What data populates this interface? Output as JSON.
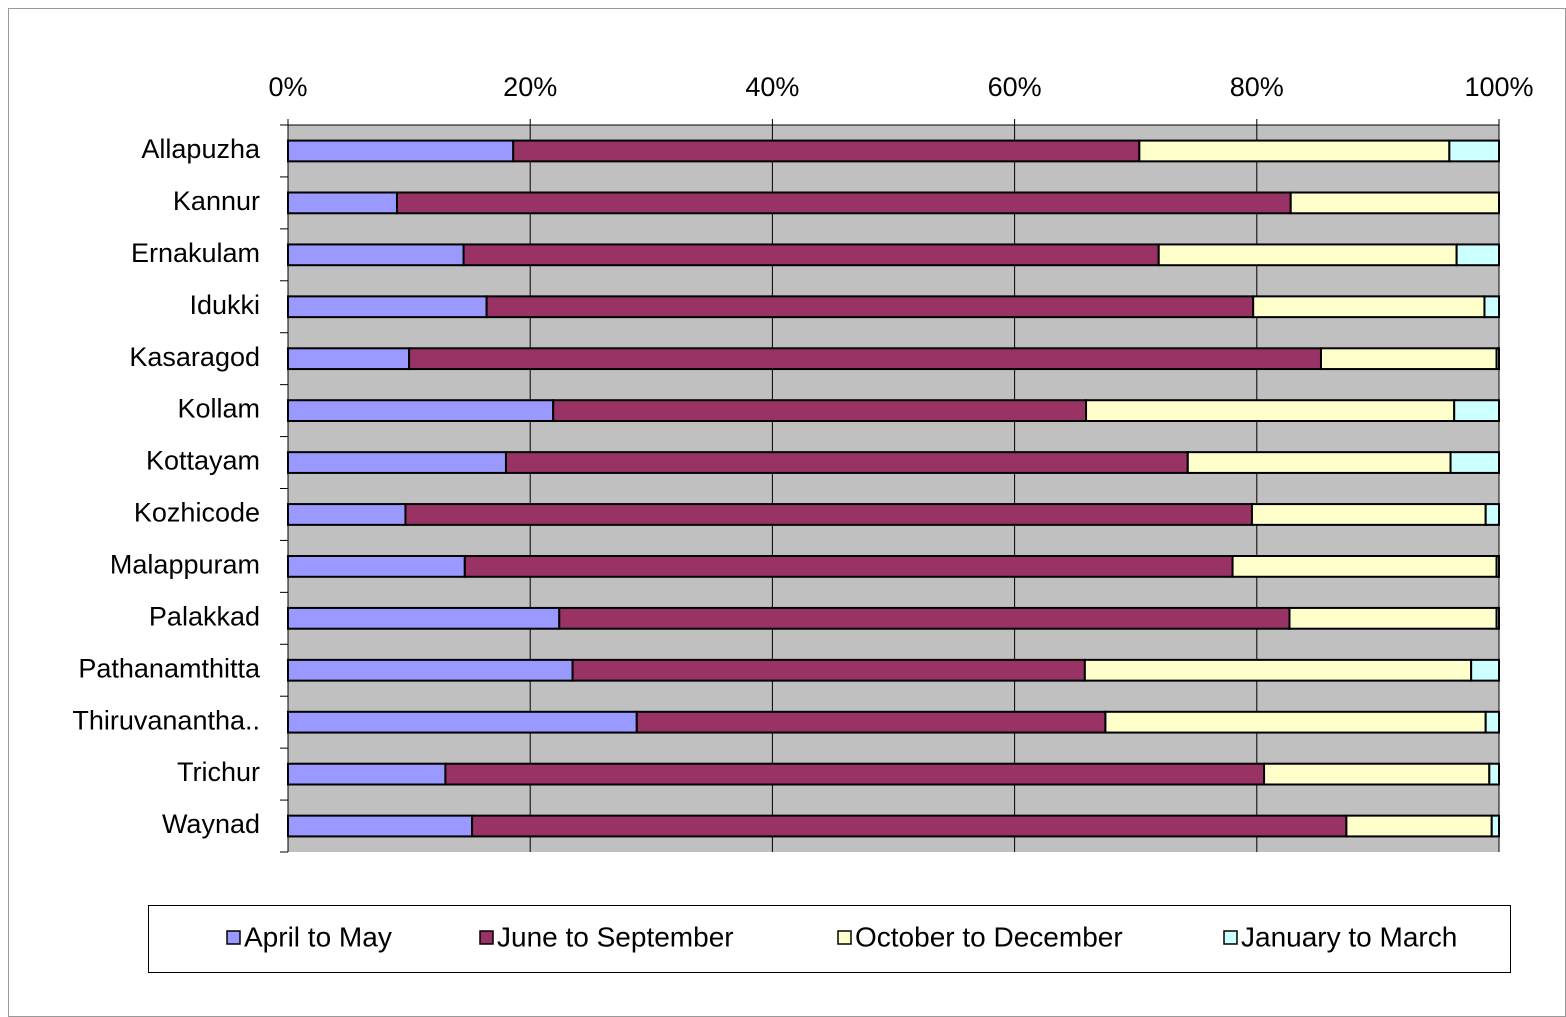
{
  "chart_data": {
    "type": "stacked_barh",
    "categories": [
      "Allapuzha",
      "Kannur",
      "Ernakulam",
      "Idukki",
      "Kasaragod",
      "Kollam",
      "Kottayam",
      "Kozhicode",
      "Malappuram",
      "Palakkad",
      "Pathanamthitta",
      "Thiruvanantha..",
      "Trichur",
      "Waynad"
    ],
    "series": [
      {
        "name": "April to May",
        "color": "#9999ff",
        "values": [
          18.6,
          9.0,
          14.5,
          16.4,
          10.0,
          21.9,
          18.0,
          9.7,
          14.6,
          22.4,
          23.5,
          28.8,
          13.0,
          15.2
        ]
      },
      {
        "name": "June to September",
        "color": "#993366",
        "values": [
          51.7,
          73.8,
          57.4,
          63.3,
          75.3,
          44.0,
          56.3,
          69.9,
          63.4,
          60.3,
          42.3,
          38.7,
          67.6,
          72.2
        ]
      },
      {
        "name": "October to December",
        "color": "#ffffcc",
        "values": [
          25.6,
          17.2,
          24.6,
          19.1,
          14.5,
          30.4,
          21.7,
          19.3,
          21.8,
          17.1,
          31.9,
          31.4,
          18.6,
          12.0
        ]
      },
      {
        "name": "January to March",
        "color": "#ccffff",
        "values": [
          4.1,
          0,
          3.5,
          1.2,
          0.2,
          3.7,
          4.0,
          1.1,
          0.2,
          0.2,
          2.3,
          1.1,
          0.8,
          0.6
        ]
      }
    ],
    "xlim": [
      0,
      100
    ],
    "xticks": [
      {
        "value": 0,
        "label": "0%"
      },
      {
        "value": 20,
        "label": "20%"
      },
      {
        "value": 40,
        "label": "40%"
      },
      {
        "value": 60,
        "label": "60%"
      },
      {
        "value": 80,
        "label": "80%"
      },
      {
        "value": 100,
        "label": "100%"
      }
    ],
    "grid": true,
    "legend": "bottom"
  }
}
